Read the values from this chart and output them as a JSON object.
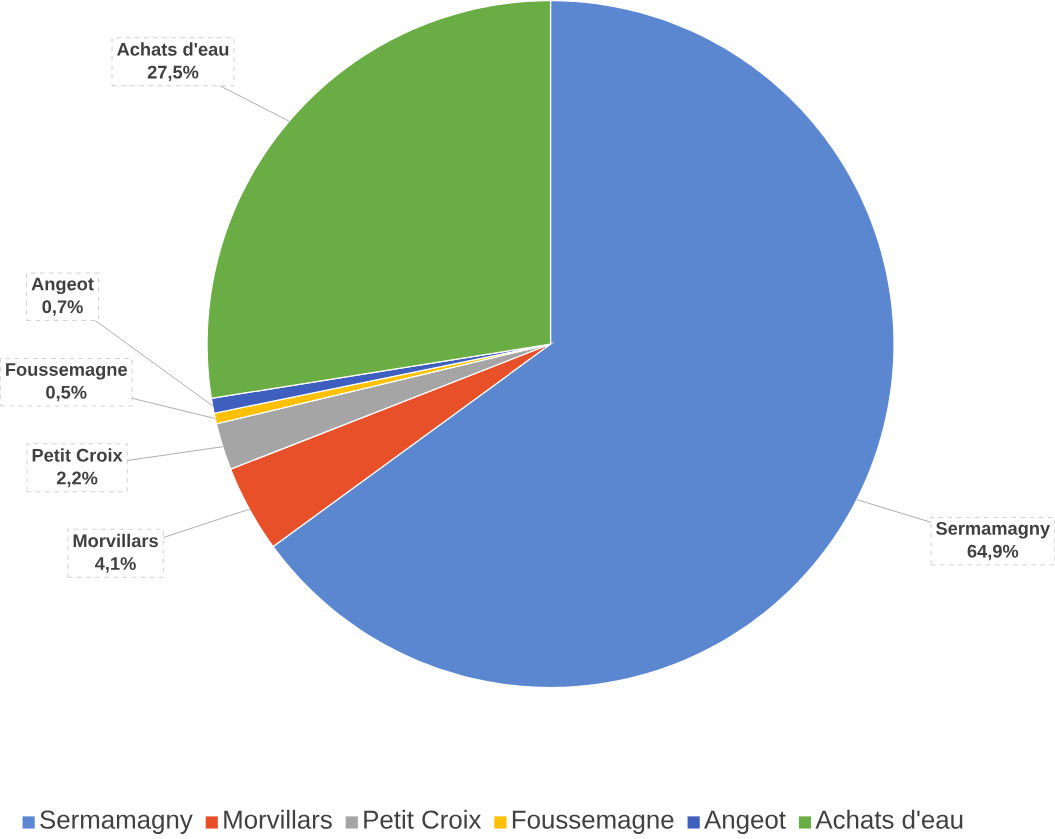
{
  "chart_data": {
    "type": "pie",
    "categories": [
      "Sermamagny",
      "Morvillars",
      "Petit Croix",
      "Foussemagne",
      "Angeot",
      "Achats d'eau"
    ],
    "values": [
      64.9,
      4.1,
      2.2,
      0.5,
      0.7,
      27.5
    ],
    "value_labels": [
      "64,9%",
      "4,1%",
      "2,2%",
      "0,5%",
      "0,7%",
      "27,5%"
    ],
    "colors": [
      "#5b87d0",
      "#e8502a",
      "#a5a5a5",
      "#ffc000",
      "#3f5fbf",
      "#6aad45"
    ],
    "legend": "bottom"
  }
}
